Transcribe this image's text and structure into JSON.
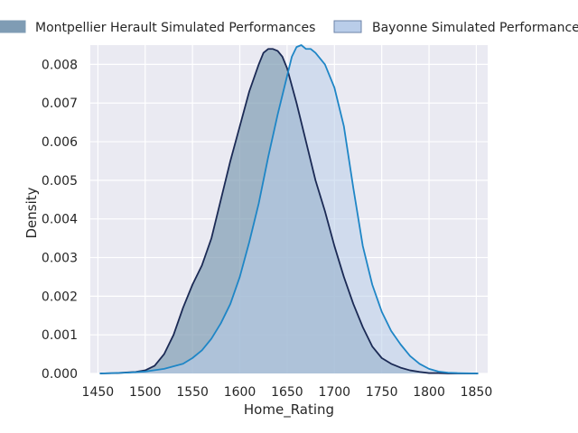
{
  "chart_data": {
    "type": "area",
    "title": "",
    "xlabel": "Home_Rating",
    "ylabel": "Density",
    "xlim": [
      1442,
      1862
    ],
    "ylim": [
      0,
      0.0085
    ],
    "xticks": [
      1450,
      1500,
      1550,
      1600,
      1650,
      1700,
      1750,
      1800,
      1850
    ],
    "yticks": [
      0.0,
      0.001,
      0.002,
      0.003,
      0.004,
      0.005,
      0.006,
      0.007,
      0.008
    ],
    "ytick_labels": [
      "0.000",
      "0.001",
      "0.002",
      "0.003",
      "0.004",
      "0.005",
      "0.006",
      "0.007",
      "0.008"
    ],
    "grid": true,
    "legend_position": "top",
    "series": [
      {
        "name": "Montpellier Herault Simulated Performances",
        "fill": "#7f9cb4",
        "line": "#1b2a55",
        "x": [
          1452,
          1470,
          1490,
          1500,
          1510,
          1520,
          1530,
          1540,
          1550,
          1560,
          1570,
          1580,
          1590,
          1600,
          1610,
          1620,
          1625,
          1630,
          1635,
          1640,
          1645,
          1650,
          1660,
          1670,
          1680,
          1690,
          1700,
          1710,
          1720,
          1730,
          1740,
          1750,
          1760,
          1770,
          1780,
          1790,
          1800,
          1810,
          1820,
          1830,
          1852
        ],
        "y": [
          0.0,
          1e-05,
          4e-05,
          8e-05,
          0.0002,
          0.0005,
          0.001,
          0.0017,
          0.0023,
          0.0028,
          0.0035,
          0.0045,
          0.0055,
          0.0064,
          0.0073,
          0.008,
          0.0083,
          0.0084,
          0.0084,
          0.00835,
          0.0082,
          0.0079,
          0.007,
          0.006,
          0.005,
          0.0042,
          0.0033,
          0.0025,
          0.0018,
          0.0012,
          0.0007,
          0.0004,
          0.00025,
          0.00015,
          8e-05,
          4e-05,
          1e-05,
          1e-05,
          0.0,
          0.0,
          0.0
        ]
      },
      {
        "name": "Bayonne Simulated Performances",
        "fill": "#b9cde9",
        "line": "#1f86c6",
        "x": [
          1452,
          1480,
          1500,
          1520,
          1540,
          1550,
          1560,
          1570,
          1580,
          1590,
          1600,
          1610,
          1620,
          1630,
          1640,
          1650,
          1655,
          1660,
          1665,
          1670,
          1675,
          1680,
          1690,
          1700,
          1710,
          1720,
          1730,
          1740,
          1750,
          1760,
          1770,
          1780,
          1790,
          1800,
          1810,
          1820,
          1830,
          1852
        ],
        "y": [
          0.0,
          2e-05,
          5e-05,
          0.00012,
          0.00025,
          0.0004,
          0.0006,
          0.0009,
          0.0013,
          0.0018,
          0.0025,
          0.0034,
          0.0044,
          0.0056,
          0.0067,
          0.0077,
          0.0082,
          0.00845,
          0.0085,
          0.0084,
          0.0084,
          0.0083,
          0.008,
          0.0074,
          0.0064,
          0.0048,
          0.0033,
          0.0023,
          0.0016,
          0.0011,
          0.00075,
          0.00045,
          0.00025,
          0.00012,
          5e-05,
          2e-05,
          1e-05,
          0.0
        ]
      }
    ]
  }
}
